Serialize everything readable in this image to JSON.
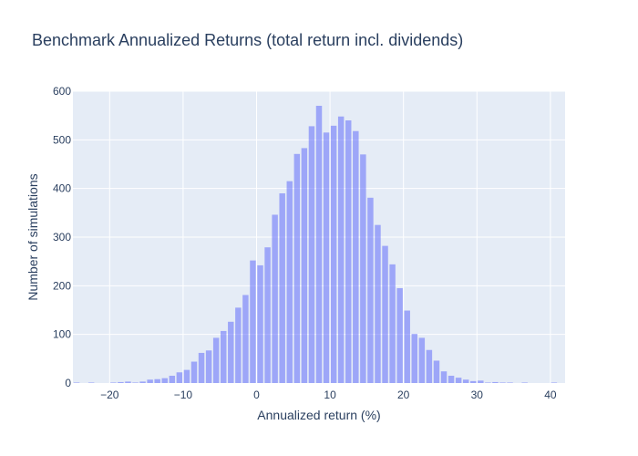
{
  "chart_data": {
    "type": "bar",
    "title": "Benchmark Annualized Returns (total return incl. dividends)",
    "xlabel": "Annualized return (%)",
    "ylabel": "Number of simulations",
    "xlim": [
      -25,
      42
    ],
    "ylim": [
      0,
      600
    ],
    "x_ticks": [
      -20,
      -10,
      0,
      10,
      20,
      30,
      40
    ],
    "x_tick_labels": [
      "−20",
      "−10",
      "0",
      "10",
      "20",
      "30",
      "40"
    ],
    "y_ticks": [
      0,
      100,
      200,
      300,
      400,
      500,
      600
    ],
    "bin_width": 1,
    "grid": true,
    "colors": {
      "bar": "#636efa",
      "plot_bg": "#e5ecf6",
      "grid": "#ffffff",
      "text": "#2a3f5f"
    },
    "bins": [
      {
        "x": -24.5,
        "y": 1
      },
      {
        "x": -23.5,
        "y": 0
      },
      {
        "x": -22.5,
        "y": 1
      },
      {
        "x": -21.5,
        "y": 0
      },
      {
        "x": -20.5,
        "y": 0
      },
      {
        "x": -19.5,
        "y": 1
      },
      {
        "x": -18.5,
        "y": 2
      },
      {
        "x": -17.5,
        "y": 3
      },
      {
        "x": -16.5,
        "y": 1
      },
      {
        "x": -15.5,
        "y": 3
      },
      {
        "x": -14.5,
        "y": 7
      },
      {
        "x": -13.5,
        "y": 8
      },
      {
        "x": -12.5,
        "y": 10
      },
      {
        "x": -11.5,
        "y": 15
      },
      {
        "x": -10.5,
        "y": 22
      },
      {
        "x": -9.5,
        "y": 27
      },
      {
        "x": -8.5,
        "y": 44
      },
      {
        "x": -7.5,
        "y": 62
      },
      {
        "x": -6.5,
        "y": 67
      },
      {
        "x": -5.5,
        "y": 93
      },
      {
        "x": -4.5,
        "y": 107
      },
      {
        "x": -3.5,
        "y": 126
      },
      {
        "x": -2.5,
        "y": 155
      },
      {
        "x": -1.5,
        "y": 181
      },
      {
        "x": -0.5,
        "y": 252
      },
      {
        "x": 0.5,
        "y": 242
      },
      {
        "x": 1.5,
        "y": 279
      },
      {
        "x": 2.5,
        "y": 346
      },
      {
        "x": 3.5,
        "y": 390
      },
      {
        "x": 4.5,
        "y": 415
      },
      {
        "x": 5.5,
        "y": 471
      },
      {
        "x": 6.5,
        "y": 483
      },
      {
        "x": 7.5,
        "y": 528
      },
      {
        "x": 8.5,
        "y": 570
      },
      {
        "x": 9.5,
        "y": 515
      },
      {
        "x": 10.5,
        "y": 529
      },
      {
        "x": 11.5,
        "y": 548
      },
      {
        "x": 12.5,
        "y": 540
      },
      {
        "x": 13.5,
        "y": 518
      },
      {
        "x": 14.5,
        "y": 470
      },
      {
        "x": 15.5,
        "y": 381
      },
      {
        "x": 16.5,
        "y": 325
      },
      {
        "x": 17.5,
        "y": 282
      },
      {
        "x": 18.5,
        "y": 244
      },
      {
        "x": 19.5,
        "y": 195
      },
      {
        "x": 20.5,
        "y": 149
      },
      {
        "x": 21.5,
        "y": 101
      },
      {
        "x": 22.5,
        "y": 93
      },
      {
        "x": 23.5,
        "y": 68
      },
      {
        "x": 24.5,
        "y": 46
      },
      {
        "x": 25.5,
        "y": 24
      },
      {
        "x": 26.5,
        "y": 15
      },
      {
        "x": 27.5,
        "y": 11
      },
      {
        "x": 28.5,
        "y": 7
      },
      {
        "x": 29.5,
        "y": 4
      },
      {
        "x": 30.5,
        "y": 5
      },
      {
        "x": 31.5,
        "y": 1
      },
      {
        "x": 32.5,
        "y": 2
      },
      {
        "x": 33.5,
        "y": 1
      },
      {
        "x": 34.5,
        "y": 1
      },
      {
        "x": 35.5,
        "y": 0
      },
      {
        "x": 36.5,
        "y": 1
      },
      {
        "x": 37.5,
        "y": 0
      },
      {
        "x": 38.5,
        "y": 0
      },
      {
        "x": 39.5,
        "y": 0
      },
      {
        "x": 40.5,
        "y": 1
      }
    ]
  }
}
